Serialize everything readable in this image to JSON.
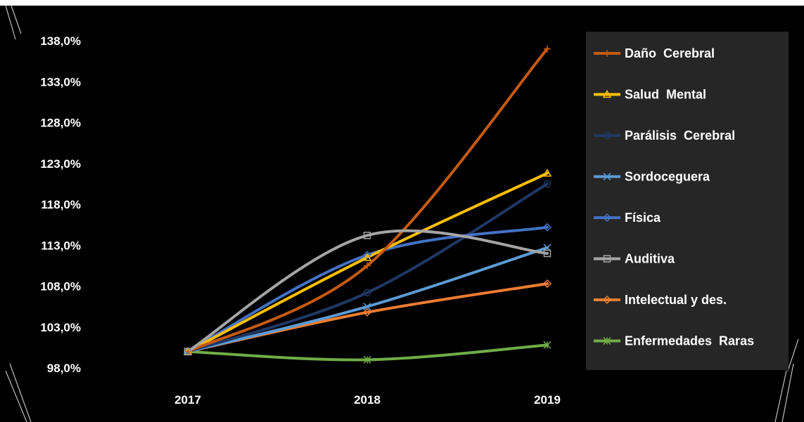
{
  "chart_data": {
    "type": "line",
    "title": "",
    "xlabel": "",
    "ylabel": "",
    "categories": [
      "2017",
      "2018",
      "2019"
    ],
    "y_ticks": [
      "98,0%",
      "103,0%",
      "108,0%",
      "113,0%",
      "118,0%",
      "123,0%",
      "128,0%",
      "133,0%",
      "138,0%"
    ],
    "ylim": [
      98,
      138
    ],
    "grid": false,
    "legend_position": "right",
    "series": [
      {
        "name": "Daño  Cerebral",
        "values": [
          100,
          110.5,
          137
        ],
        "color": "#c55a11",
        "marker": "plus",
        "smooth": true
      },
      {
        "name": "Salud  Mental",
        "values": [
          100,
          111.5,
          121.8
        ],
        "color": "#ffc000",
        "marker": "triangle",
        "smooth": true
      },
      {
        "name": "Parálisis  Cerebral",
        "values": [
          100,
          107.2,
          120.5
        ],
        "color": "#203864",
        "marker": "circle",
        "smooth": true
      },
      {
        "name": "Sordoceguera",
        "values": [
          100,
          105.5,
          112.7
        ],
        "color": "#5b9bd5",
        "marker": "x",
        "smooth": true
      },
      {
        "name": "Física",
        "values": [
          100,
          111.8,
          115.2
        ],
        "color": "#4472c4",
        "marker": "diamond",
        "smooth": true
      },
      {
        "name": "Auditiva",
        "values": [
          100,
          114.2,
          112
        ],
        "color": "#a5a5a5",
        "marker": "square",
        "smooth": true
      },
      {
        "name": "Intelectual y des.",
        "values": [
          100,
          104.8,
          108.3
        ],
        "color": "#ed7d31",
        "marker": "diamond",
        "smooth": true
      },
      {
        "name": "Enfermedades  Raras",
        "values": [
          100,
          99,
          100.8
        ],
        "color": "#70ad47",
        "marker": "star",
        "smooth": true
      }
    ],
    "colors": {
      "background": "#000000",
      "legend_background": "#262626",
      "text": "#ffffff"
    }
  }
}
